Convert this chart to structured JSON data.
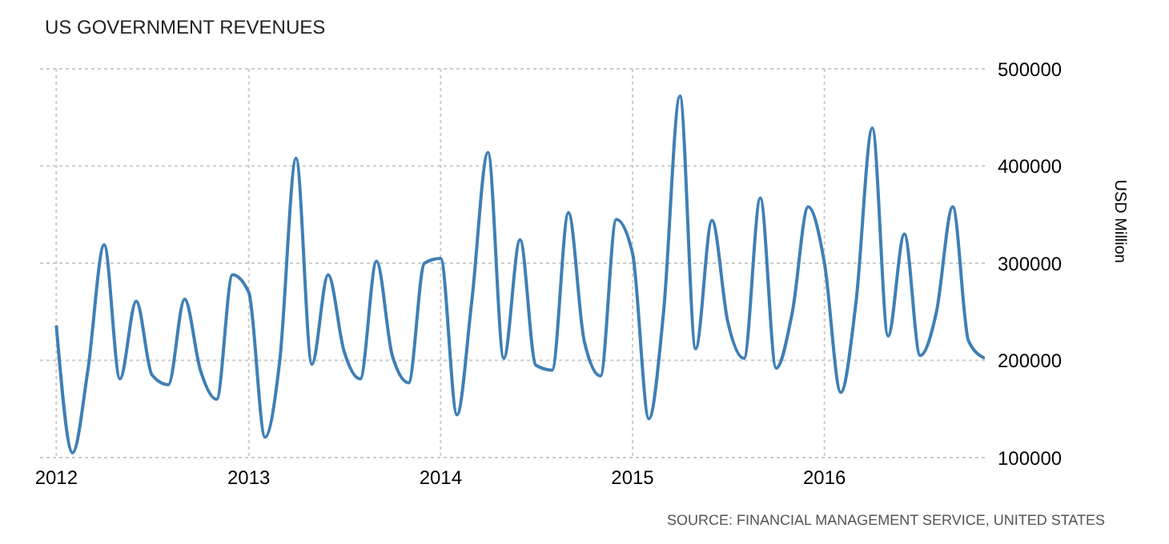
{
  "chart_data": {
    "type": "line",
    "title": "US GOVERNMENT REVENUES",
    "ylabel": "USD Million",
    "annotations": [
      "SOURCE: FINANCIAL MANAGEMENT SERVICE, UNITED STATES"
    ],
    "x": [
      "2012-01",
      "2012-02",
      "2012-03",
      "2012-04",
      "2012-05",
      "2012-06",
      "2012-07",
      "2012-08",
      "2012-09",
      "2012-10",
      "2012-11",
      "2012-12",
      "2013-01",
      "2013-02",
      "2013-03",
      "2013-04",
      "2013-05",
      "2013-06",
      "2013-07",
      "2013-08",
      "2013-09",
      "2013-10",
      "2013-11",
      "2013-12",
      "2014-01",
      "2014-02",
      "2014-03",
      "2014-04",
      "2014-05",
      "2014-06",
      "2014-07",
      "2014-08",
      "2014-09",
      "2014-10",
      "2014-11",
      "2014-12",
      "2015-01",
      "2015-02",
      "2015-03",
      "2015-04",
      "2015-05",
      "2015-06",
      "2015-07",
      "2015-08",
      "2015-09",
      "2015-10",
      "2015-11",
      "2015-12",
      "2016-01",
      "2016-02",
      "2016-03",
      "2016-04",
      "2016-05",
      "2016-06",
      "2016-07",
      "2016-08",
      "2016-09",
      "2016-10",
      "2016-11"
    ],
    "series": [
      {
        "color": "#3f7fb5",
        "values": [
          236000,
          105000,
          190000,
          319000,
          181000,
          261000,
          185000,
          175000,
          263000,
          190000,
          160000,
          288000,
          270000,
          121000,
          200000,
          408000,
          196000,
          288000,
          210000,
          181000,
          302000,
          205000,
          177000,
          300000,
          305000,
          144000,
          260000,
          414000,
          202000,
          324000,
          195000,
          190000,
          352000,
          220000,
          184000,
          345000,
          310000,
          140000,
          250000,
          472000,
          212000,
          344000,
          240000,
          202000,
          367000,
          192000,
          250000,
          358000,
          300000,
          167000,
          260000,
          439000,
          225000,
          330000,
          205000,
          250000,
          358000,
          220000,
          202000
        ]
      }
    ],
    "xlim": [
      "2011-12",
      "2016-11"
    ],
    "xticks": [
      {
        "value": "2012",
        "label": "2012"
      },
      {
        "value": "2013",
        "label": "2013"
      },
      {
        "value": "2014",
        "label": "2014"
      },
      {
        "value": "2015",
        "label": "2015"
      },
      {
        "value": "2016",
        "label": "2016"
      }
    ],
    "ylim": [
      100000,
      500000
    ],
    "yticks": [
      100000,
      200000,
      300000,
      400000,
      500000
    ],
    "grid": true,
    "legend": false,
    "marker": "none",
    "line_style": "solid"
  }
}
